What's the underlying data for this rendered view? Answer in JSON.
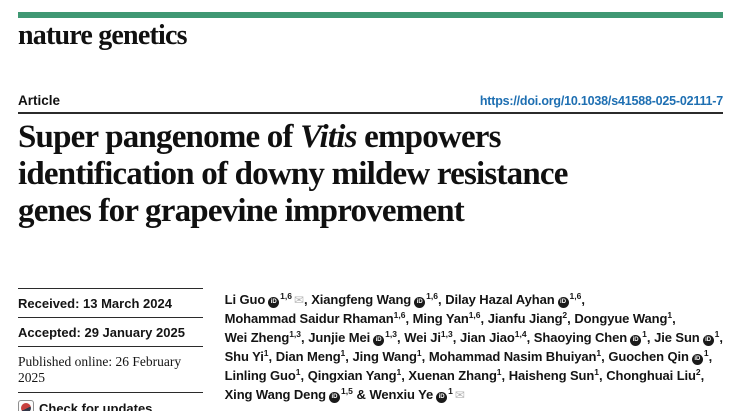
{
  "colors": {
    "brand_green": "#3f9873",
    "link_blue": "#1e6fb2",
    "rule_dark": "#2b2b2b",
    "crossmark_red": "#c8403e",
    "crossmark_navy": "#333748",
    "orcid_dark": "#1a1a1a",
    "mail_gray": "#b3b3b3"
  },
  "brand": {
    "journal": "nature genetics"
  },
  "header": {
    "article_label": "Article",
    "doi": "https://doi.org/10.1038/s41588-025-02111-7"
  },
  "title": {
    "full_text": "Super pangenome of Vitis empowers identification of downy mildew resistance genes for grapevine improvement",
    "lines": [
      [
        {
          "t": "Super pangenome of ",
          "i": false
        },
        {
          "t": "Vitis",
          "i": true
        },
        {
          "t": " empowers",
          "i": false
        }
      ],
      [
        {
          "t": "identification of downy mildew resistance",
          "i": false
        }
      ],
      [
        {
          "t": "genes for grapevine improvement",
          "i": false
        }
      ]
    ]
  },
  "meta": {
    "received": "Received: 13 March 2024",
    "accepted": "Accepted: 29 January 2025",
    "published": "Published online: 26 February 2025",
    "check_label": "Check for updates"
  },
  "authors": {
    "lines": [
      [
        {
          "name": "Li Guo",
          "orcid": true,
          "sup": "1,6",
          "mail": true,
          "sep": ", "
        },
        {
          "name": "Xiangfeng Wang",
          "orcid": true,
          "sup": "1,6",
          "sep": ", "
        },
        {
          "name": "Dilay Hazal Ayhan",
          "orcid": true,
          "sup": "1,6",
          "sep": ","
        }
      ],
      [
        {
          "name": "Mohammad Saidur Rhaman",
          "sup": "1,6",
          "sep": ", "
        },
        {
          "name": "Ming Yan",
          "sup": "1,6",
          "sep": ", "
        },
        {
          "name": "Jianfu Jiang",
          "sup": "2",
          "sep": ", "
        },
        {
          "name": "Dongyue Wang",
          "sup": "1",
          "sep": ","
        }
      ],
      [
        {
          "name": "Wei Zheng",
          "sup": "1,3",
          "sep": ", "
        },
        {
          "name": "Junjie Mei",
          "orcid": true,
          "sup": "1,3",
          "sep": ", "
        },
        {
          "name": "Wei Ji",
          "sup": "1,3",
          "sep": ", "
        },
        {
          "name": "Jian Jiao",
          "sup": "1,4",
          "sep": ", "
        },
        {
          "name": "Shaoying Chen",
          "orcid": true,
          "sup": "1",
          "sep": ", "
        },
        {
          "name": "Jie Sun",
          "orcid": true,
          "sup": "1",
          "sep": ","
        }
      ],
      [
        {
          "name": "Shu Yi",
          "sup": "1",
          "sep": ", "
        },
        {
          "name": "Dian Meng",
          "sup": "1",
          "sep": ", "
        },
        {
          "name": "Jing Wang",
          "sup": "1",
          "sep": ", "
        },
        {
          "name": "Mohammad Nasim Bhuiyan",
          "sup": "1",
          "sep": ", "
        },
        {
          "name": "Guochen Qin",
          "orcid": true,
          "sup": "1",
          "sep": ","
        }
      ],
      [
        {
          "name": "Linling Guo",
          "sup": "1",
          "sep": ", "
        },
        {
          "name": "Qingxian Yang",
          "sup": "1",
          "sep": ", "
        },
        {
          "name": "Xuenan Zhang",
          "sup": "1",
          "sep": ", "
        },
        {
          "name": "Haisheng Sun",
          "sup": "1",
          "sep": ", "
        },
        {
          "name": "Chonghuai Liu",
          "sup": "2",
          "sep": ","
        }
      ],
      [
        {
          "name": "Xing Wang Deng",
          "orcid": true,
          "sup": "1,5",
          "sep": " & "
        },
        {
          "name": "Wenxiu Ye",
          "orcid": true,
          "sup": "1",
          "mail": true
        }
      ]
    ]
  }
}
